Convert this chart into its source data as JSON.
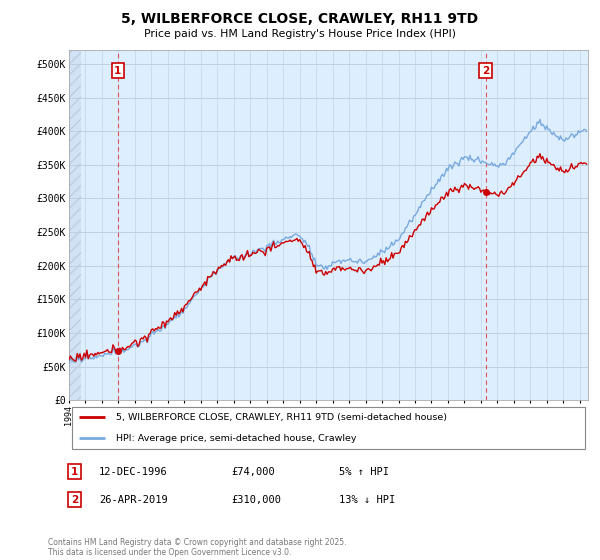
{
  "title": "5, WILBERFORCE CLOSE, CRAWLEY, RH11 9TD",
  "subtitle": "Price paid vs. HM Land Registry's House Price Index (HPI)",
  "ylabel_ticks": [
    "£0",
    "£50K",
    "£100K",
    "£150K",
    "£200K",
    "£250K",
    "£300K",
    "£350K",
    "£400K",
    "£450K",
    "£500K"
  ],
  "ytick_values": [
    0,
    50000,
    100000,
    150000,
    200000,
    250000,
    300000,
    350000,
    400000,
    450000,
    500000
  ],
  "ylim": [
    0,
    520000
  ],
  "xlim_start": 1994,
  "xlim_end": 2025.5,
  "sale1_year": 1996.958,
  "sale1_price": 74000,
  "sale1_label": "1",
  "sale1_date": "12-DEC-1996",
  "sale1_pct": "5% ↑ HPI",
  "sale2_year": 2019.29,
  "sale2_price": 310000,
  "sale2_label": "2",
  "sale2_date": "26-APR-2019",
  "sale2_pct": "13% ↓ HPI",
  "legend_house": "5, WILBERFORCE CLOSE, CRAWLEY, RH11 9TD (semi-detached house)",
  "legend_hpi": "HPI: Average price, semi-detached house, Crawley",
  "footer": "Contains HM Land Registry data © Crown copyright and database right 2025.\nThis data is licensed under the Open Government Licence v3.0.",
  "sale_color": "#cc0000",
  "hpi_color": "#7aaadd",
  "vline_color": "#dd4444",
  "bg_color": "#ddeeff",
  "grid_color": "#bbccdd"
}
